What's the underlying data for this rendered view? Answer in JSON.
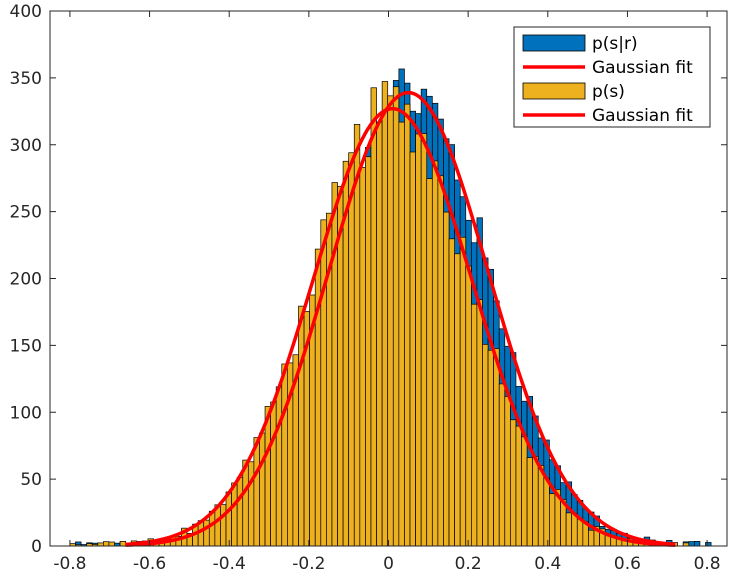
{
  "chart_data": {
    "type": "bar",
    "title": "",
    "xlabel": "",
    "ylabel": "",
    "xlim": [
      -0.85,
      0.85
    ],
    "ylim": [
      0,
      400
    ],
    "xticks": [
      -0.8,
      -0.6,
      -0.4,
      -0.2,
      0,
      0.2,
      0.4,
      0.6,
      0.8
    ],
    "xtick_labels": [
      "-0.8",
      "-0.6",
      "-0.4",
      "-0.2",
      "0",
      "0.2",
      "0.4",
      "0.6",
      "0.8"
    ],
    "yticks": [
      0,
      50,
      100,
      150,
      200,
      250,
      300,
      350,
      400
    ],
    "ytick_labels": [
      "0",
      "50",
      "100",
      "150",
      "200",
      "250",
      "300",
      "350",
      "400"
    ],
    "grid": false,
    "legend_position": "top-right",
    "bin_width": 0.014,
    "series": [
      {
        "name": "p(s|r)",
        "kind": "histogram",
        "color": "#0072BD",
        "fit_mean": 0.05,
        "fit_sigma": 0.2,
        "fit_peak": 339
      },
      {
        "name": "Gaussian fit",
        "kind": "line",
        "color": "#FF0000",
        "mean": 0.05,
        "sigma": 0.2,
        "peak": 339,
        "x_range": [
          -0.66,
          0.72
        ]
      },
      {
        "name": "p(s)",
        "kind": "histogram",
        "color": "#EDB120",
        "fit_mean": 0.01,
        "fit_sigma": 0.2,
        "fit_peak": 327
      },
      {
        "name": "Gaussian fit",
        "kind": "line",
        "color": "#FF0000",
        "mean": 0.01,
        "sigma": 0.2,
        "peak": 327,
        "x_range": [
          -0.66,
          0.72
        ]
      }
    ]
  }
}
